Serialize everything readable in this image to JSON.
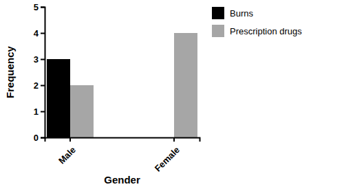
{
  "chart_data": {
    "type": "bar",
    "x_label": "Gender",
    "y_label": "Frequency",
    "categories": [
      "Male",
      "Female"
    ],
    "series": [
      {
        "name": "Burns",
        "color": "#000000",
        "values": [
          3,
          0
        ]
      },
      {
        "name": "Prescription drugs",
        "color": "#a6a6a6",
        "values": [
          2,
          4
        ]
      }
    ],
    "ylim": [
      0,
      5
    ],
    "yticks": [
      0,
      1,
      2,
      3,
      4,
      5
    ],
    "legend": "top right"
  }
}
